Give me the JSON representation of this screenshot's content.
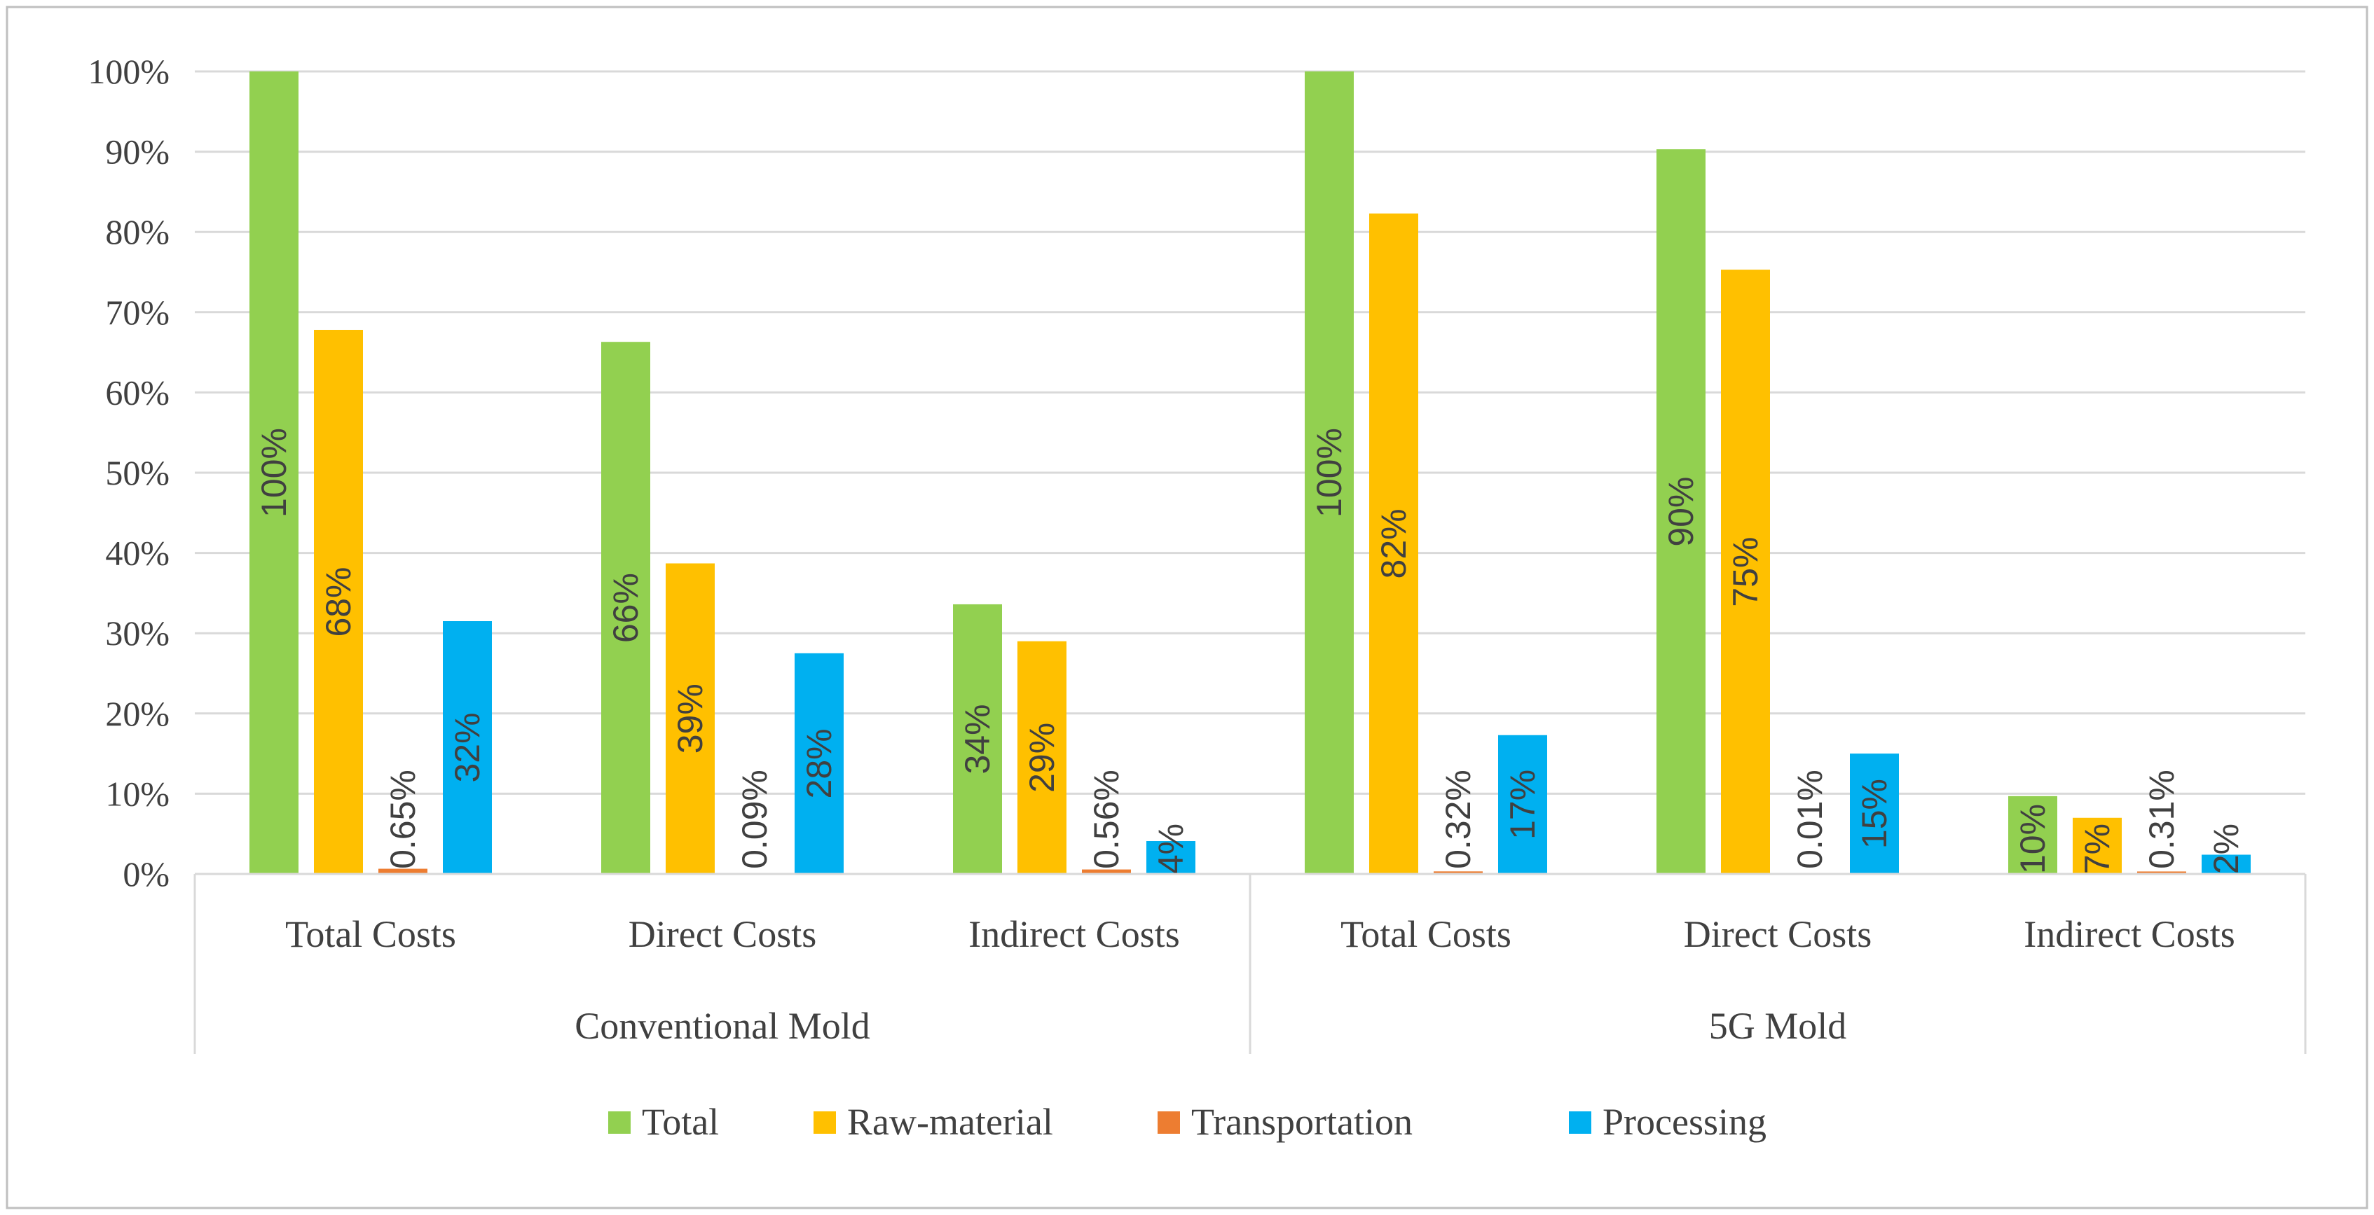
{
  "chart_data": {
    "type": "bar",
    "title": "",
    "xlabel": "",
    "ylabel": "",
    "ylim": [
      0,
      100
    ],
    "y_ticks": [
      "0%",
      "10%",
      "20%",
      "30%",
      "40%",
      "50%",
      "60%",
      "70%",
      "80%",
      "90%",
      "100%"
    ],
    "grid": true,
    "legend_position": "bottom",
    "groups": [
      {
        "name": "Conventional Mold",
        "categories": [
          "Total Costs",
          "Direct Costs",
          "Indirect Costs"
        ]
      },
      {
        "name": "5G Mold",
        "categories": [
          "Total Costs",
          "Direct Costs",
          "Indirect Costs"
        ]
      }
    ],
    "series": [
      {
        "name": "Total",
        "color": "#92d050",
        "values": [
          100,
          66.3,
          33.6,
          100,
          90.3,
          9.7
        ],
        "labels": [
          "100%",
          "66%",
          "34%",
          "100%",
          "90%",
          "10%"
        ]
      },
      {
        "name": "Raw-material",
        "color": "#ffc000",
        "values": [
          67.8,
          38.7,
          29.0,
          82.3,
          75.3,
          7.0
        ],
        "labels": [
          "68%",
          "39%",
          "29%",
          "82%",
          "75%",
          "7%"
        ]
      },
      {
        "name": "Transportation",
        "color": "#ed7d31",
        "values": [
          0.65,
          0.09,
          0.56,
          0.32,
          0.01,
          0.31
        ],
        "labels": [
          "0.65%",
          "0.09%",
          "0.56%",
          "0.32%",
          "0.01%",
          "0.31%"
        ]
      },
      {
        "name": "Processing",
        "color": "#00b0f0",
        "values": [
          31.5,
          27.5,
          4.1,
          17.3,
          15.0,
          2.4
        ],
        "labels": [
          "32%",
          "28%",
          "4%",
          "17%",
          "15%",
          "2%"
        ]
      }
    ]
  }
}
